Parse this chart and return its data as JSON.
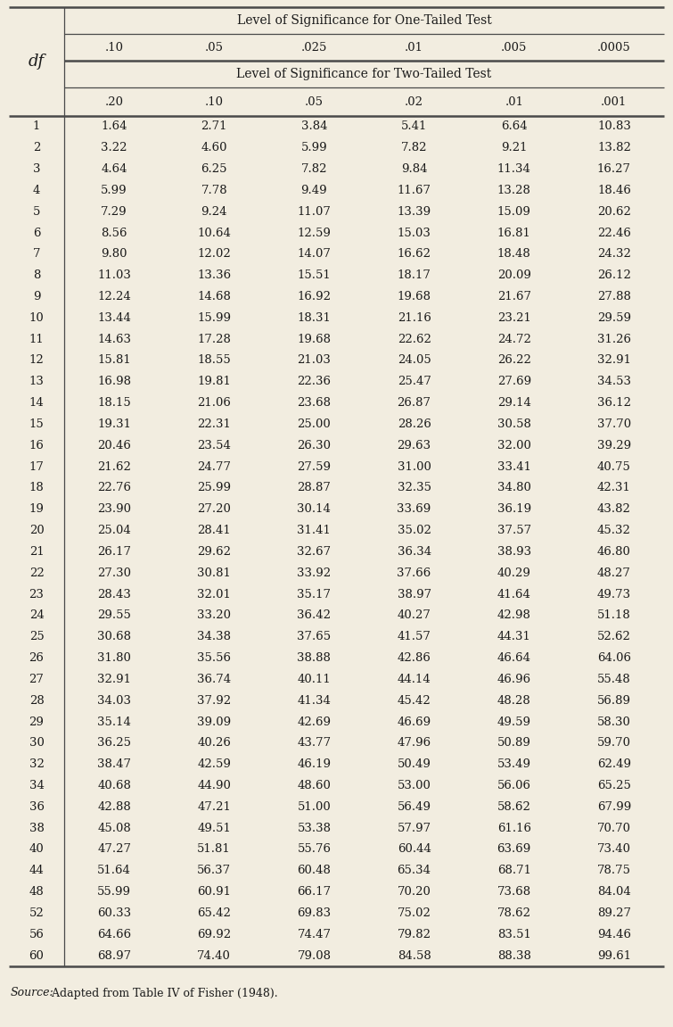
{
  "header_one_tailed": "Level of Significance for One-Tailed Test",
  "header_two_tailed": "Level of Significance for Two-Tailed Test",
  "one_tailed_labels": [
    ".10",
    ".05",
    ".025",
    ".01",
    ".005",
    ".0005"
  ],
  "two_tailed_labels": [
    ".20",
    ".10",
    ".05",
    ".02",
    ".01",
    ".001"
  ],
  "df_label": "df",
  "source_italic": "Source:",
  "source_rest": " Adapted from Table IV of Fisher (1948).",
  "rows": [
    [
      1,
      1.64,
      2.71,
      3.84,
      5.41,
      6.64,
      10.83
    ],
    [
      2,
      3.22,
      4.6,
      5.99,
      7.82,
      9.21,
      13.82
    ],
    [
      3,
      4.64,
      6.25,
      7.82,
      9.84,
      11.34,
      16.27
    ],
    [
      4,
      5.99,
      7.78,
      9.49,
      11.67,
      13.28,
      18.46
    ],
    [
      5,
      7.29,
      9.24,
      11.07,
      13.39,
      15.09,
      20.62
    ],
    [
      6,
      8.56,
      10.64,
      12.59,
      15.03,
      16.81,
      22.46
    ],
    [
      7,
      9.8,
      12.02,
      14.07,
      16.62,
      18.48,
      24.32
    ],
    [
      8,
      11.03,
      13.36,
      15.51,
      18.17,
      20.09,
      26.12
    ],
    [
      9,
      12.24,
      14.68,
      16.92,
      19.68,
      21.67,
      27.88
    ],
    [
      10,
      13.44,
      15.99,
      18.31,
      21.16,
      23.21,
      29.59
    ],
    [
      11,
      14.63,
      17.28,
      19.68,
      22.62,
      24.72,
      31.26
    ],
    [
      12,
      15.81,
      18.55,
      21.03,
      24.05,
      26.22,
      32.91
    ],
    [
      13,
      16.98,
      19.81,
      22.36,
      25.47,
      27.69,
      34.53
    ],
    [
      14,
      18.15,
      21.06,
      23.68,
      26.87,
      29.14,
      36.12
    ],
    [
      15,
      19.31,
      22.31,
      25.0,
      28.26,
      30.58,
      37.7
    ],
    [
      16,
      20.46,
      23.54,
      26.3,
      29.63,
      32.0,
      39.29
    ],
    [
      17,
      21.62,
      24.77,
      27.59,
      31.0,
      33.41,
      40.75
    ],
    [
      18,
      22.76,
      25.99,
      28.87,
      32.35,
      34.8,
      42.31
    ],
    [
      19,
      23.9,
      27.2,
      30.14,
      33.69,
      36.19,
      43.82
    ],
    [
      20,
      25.04,
      28.41,
      31.41,
      35.02,
      37.57,
      45.32
    ],
    [
      21,
      26.17,
      29.62,
      32.67,
      36.34,
      38.93,
      46.8
    ],
    [
      22,
      27.3,
      30.81,
      33.92,
      37.66,
      40.29,
      48.27
    ],
    [
      23,
      28.43,
      32.01,
      35.17,
      38.97,
      41.64,
      49.73
    ],
    [
      24,
      29.55,
      33.2,
      36.42,
      40.27,
      42.98,
      51.18
    ],
    [
      25,
      30.68,
      34.38,
      37.65,
      41.57,
      44.31,
      52.62
    ],
    [
      26,
      31.8,
      35.56,
      38.88,
      42.86,
      46.64,
      64.06
    ],
    [
      27,
      32.91,
      36.74,
      40.11,
      44.14,
      46.96,
      55.48
    ],
    [
      28,
      34.03,
      37.92,
      41.34,
      45.42,
      48.28,
      56.89
    ],
    [
      29,
      35.14,
      39.09,
      42.69,
      46.69,
      49.59,
      58.3
    ],
    [
      30,
      36.25,
      40.26,
      43.77,
      47.96,
      50.89,
      59.7
    ],
    [
      32,
      38.47,
      42.59,
      46.19,
      50.49,
      53.49,
      62.49
    ],
    [
      34,
      40.68,
      44.9,
      48.6,
      53.0,
      56.06,
      65.25
    ],
    [
      36,
      42.88,
      47.21,
      51.0,
      56.49,
      58.62,
      67.99
    ],
    [
      38,
      45.08,
      49.51,
      53.38,
      57.97,
      61.16,
      70.7
    ],
    [
      40,
      47.27,
      51.81,
      55.76,
      60.44,
      63.69,
      73.4
    ],
    [
      44,
      51.64,
      56.37,
      60.48,
      65.34,
      68.71,
      78.75
    ],
    [
      48,
      55.99,
      60.91,
      66.17,
      70.2,
      73.68,
      84.04
    ],
    [
      52,
      60.33,
      65.42,
      69.83,
      75.02,
      78.62,
      89.27
    ],
    [
      56,
      64.66,
      69.92,
      74.47,
      79.82,
      83.51,
      94.46
    ],
    [
      60,
      68.97,
      74.4,
      79.08,
      84.58,
      88.38,
      99.61
    ]
  ],
  "bg_color": "#f2ede0",
  "text_color": "#1a1a1a",
  "line_color": "#4a4a4a",
  "font_family": "serif",
  "font_size": 9.5,
  "header_font_size": 10.0,
  "df_font_size": 13.0,
  "source_font_size": 9.0
}
